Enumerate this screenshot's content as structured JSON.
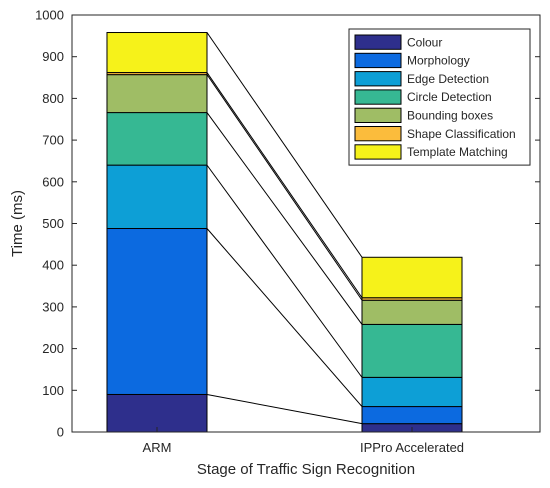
{
  "chart_data": {
    "type": "bar",
    "stacked": true,
    "xlabel": "Stage of Traffic Sign Recognition",
    "ylabel": "Time (ms)",
    "ylim": [
      0,
      1000
    ],
    "yticks": [
      0,
      100,
      200,
      300,
      400,
      500,
      600,
      700,
      800,
      900,
      1000
    ],
    "categories": [
      "ARM",
      "IPPro Accelerated"
    ],
    "legend_position": "top-right",
    "grid": false,
    "connector_lines": true,
    "series": [
      {
        "name": "Colour",
        "color": "#2e2f8c",
        "values": [
          90,
          20
        ]
      },
      {
        "name": "Morphology",
        "color": "#0c6ae0",
        "values": [
          398,
          41
        ]
      },
      {
        "name": "Edge Detection",
        "color": "#0d9fd6",
        "values": [
          152,
          70
        ]
      },
      {
        "name": "Circle Detection",
        "color": "#36b893",
        "values": [
          126,
          127
        ]
      },
      {
        "name": "Bounding boxes",
        "color": "#9fbd65",
        "values": [
          91,
          58
        ]
      },
      {
        "name": "Shape Classification",
        "color": "#fbbc3c",
        "values": [
          5,
          6
        ]
      },
      {
        "name": "Template Matching",
        "color": "#f6f21a",
        "values": [
          96,
          97
        ]
      }
    ]
  }
}
